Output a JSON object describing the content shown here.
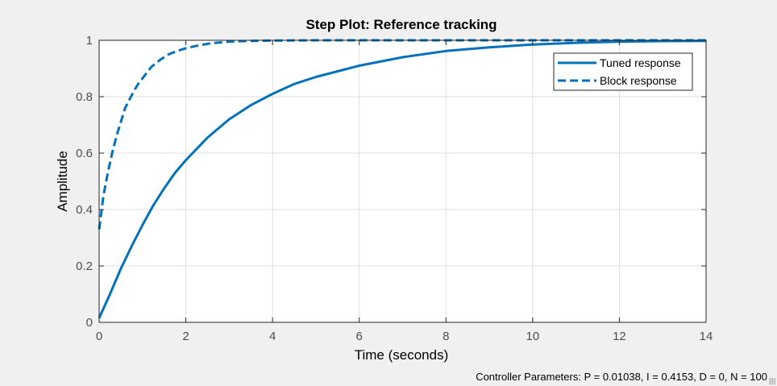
{
  "chart_data": {
    "type": "line",
    "title": "Step Plot: Reference tracking",
    "xlabel": "Time (seconds)",
    "ylabel": "Amplitude",
    "xlim": [
      0,
      14
    ],
    "ylim": [
      0,
      1
    ],
    "xticks": [
      0,
      2,
      4,
      6,
      8,
      10,
      12,
      14
    ],
    "yticks": [
      0,
      0.2,
      0.4,
      0.6,
      0.8,
      1
    ],
    "ytick_labels": [
      "0",
      "0.2",
      "0.4",
      "0.6",
      "0.8",
      "1"
    ],
    "grid": true,
    "legend_position": "top-right",
    "series": [
      {
        "name": "Tuned response",
        "style": "solid",
        "color": "#0072bd",
        "x": [
          0,
          0.25,
          0.5,
          0.75,
          1,
          1.25,
          1.5,
          1.75,
          2,
          2.5,
          3,
          3.5,
          4,
          4.5,
          5,
          6,
          7,
          8,
          9,
          10,
          11,
          12,
          13,
          14
        ],
        "y": [
          0.015,
          0.1,
          0.19,
          0.27,
          0.345,
          0.415,
          0.475,
          0.53,
          0.575,
          0.655,
          0.72,
          0.77,
          0.81,
          0.845,
          0.87,
          0.91,
          0.94,
          0.962,
          0.975,
          0.985,
          0.991,
          0.995,
          0.997,
          0.998
        ]
      },
      {
        "name": "Block response",
        "style": "dashed",
        "color": "#0072bd",
        "x": [
          0,
          0.1,
          0.2,
          0.3,
          0.4,
          0.5,
          0.6,
          0.7,
          0.8,
          0.9,
          1.0,
          1.2,
          1.4,
          1.6,
          1.8,
          2.0,
          2.3,
          2.6,
          3.0,
          3.5,
          4.0,
          5.0,
          6.0,
          8.0,
          10.0,
          14.0
        ],
        "y": [
          0.33,
          0.45,
          0.53,
          0.6,
          0.66,
          0.71,
          0.76,
          0.79,
          0.82,
          0.845,
          0.865,
          0.905,
          0.93,
          0.95,
          0.962,
          0.972,
          0.982,
          0.99,
          0.995,
          0.998,
          0.999,
          1.0,
          1.0,
          1.0,
          1.0,
          1.0
        ]
      }
    ]
  },
  "status": {
    "text": "Controller Parameters: P = 0.01038, I = 0.4153, D =  0, N = 100"
  }
}
